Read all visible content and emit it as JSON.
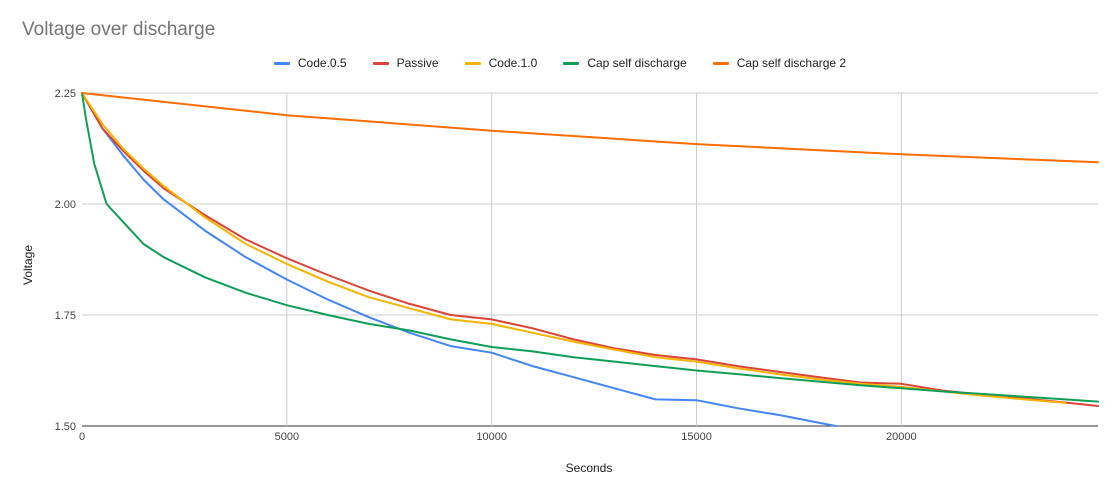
{
  "chart_data": {
    "type": "line",
    "title": "Voltage over discharge",
    "xlabel": "Seconds",
    "ylabel": "Voltage",
    "xlim": [
      0,
      24800
    ],
    "ylim": [
      1.5,
      2.25
    ],
    "x_ticks": [
      0,
      5000,
      10000,
      15000,
      20000
    ],
    "y_ticks": [
      "1.50",
      "1.75",
      "2.00",
      "2.25"
    ],
    "grid": true,
    "legend_position": "top",
    "series": [
      {
        "name": "Code.0.5",
        "color": "#4285f4",
        "points": [
          [
            0,
            2.25
          ],
          [
            500,
            2.17
          ],
          [
            1000,
            2.11
          ],
          [
            1500,
            2.055
          ],
          [
            2000,
            2.01
          ],
          [
            3000,
            1.94
          ],
          [
            4000,
            1.88
          ],
          [
            5000,
            1.83
          ],
          [
            6000,
            1.785
          ],
          [
            7000,
            1.745
          ],
          [
            8000,
            1.71
          ],
          [
            9000,
            1.68
          ],
          [
            10000,
            1.665
          ],
          [
            11000,
            1.635
          ],
          [
            12000,
            1.61
          ],
          [
            13000,
            1.585
          ],
          [
            14000,
            1.56
          ],
          [
            15000,
            1.558
          ],
          [
            16000,
            1.54
          ],
          [
            17000,
            1.525
          ],
          [
            18400,
            1.5
          ]
        ]
      },
      {
        "name": "Passive",
        "color": "#db4437",
        "points": [
          [
            0,
            2.25
          ],
          [
            500,
            2.17
          ],
          [
            1000,
            2.12
          ],
          [
            1500,
            2.075
          ],
          [
            2000,
            2.035
          ],
          [
            3000,
            1.975
          ],
          [
            4000,
            1.92
          ],
          [
            5000,
            1.878
          ],
          [
            6000,
            1.84
          ],
          [
            7000,
            1.805
          ],
          [
            8000,
            1.775
          ],
          [
            9000,
            1.75
          ],
          [
            10000,
            1.74
          ],
          [
            11000,
            1.72
          ],
          [
            12000,
            1.695
          ],
          [
            13000,
            1.675
          ],
          [
            14000,
            1.66
          ],
          [
            15000,
            1.65
          ],
          [
            16000,
            1.635
          ],
          [
            17000,
            1.622
          ],
          [
            18000,
            1.61
          ],
          [
            19000,
            1.598
          ],
          [
            20000,
            1.595
          ],
          [
            21000,
            1.58
          ],
          [
            22000,
            1.57
          ],
          [
            23000,
            1.562
          ],
          [
            24000,
            1.553
          ],
          [
            24800,
            1.545
          ]
        ]
      },
      {
        "name": "Code.1.0",
        "color": "#f4b400",
        "points": [
          [
            0,
            2.25
          ],
          [
            500,
            2.18
          ],
          [
            1000,
            2.125
          ],
          [
            1500,
            2.08
          ],
          [
            2000,
            2.04
          ],
          [
            3000,
            1.97
          ],
          [
            4000,
            1.91
          ],
          [
            5000,
            1.865
          ],
          [
            6000,
            1.825
          ],
          [
            7000,
            1.79
          ],
          [
            8000,
            1.765
          ],
          [
            9000,
            1.74
          ],
          [
            10000,
            1.73
          ],
          [
            11000,
            1.71
          ],
          [
            12000,
            1.69
          ],
          [
            13000,
            1.672
          ],
          [
            14000,
            1.655
          ],
          [
            15000,
            1.645
          ],
          [
            16000,
            1.63
          ],
          [
            17000,
            1.617
          ],
          [
            18000,
            1.605
          ],
          [
            19000,
            1.595
          ],
          [
            20000,
            1.588
          ],
          [
            21000,
            1.578
          ],
          [
            22000,
            1.568
          ],
          [
            23000,
            1.56
          ],
          [
            24000,
            1.552
          ]
        ]
      },
      {
        "name": "Cap self discharge",
        "color": "#0f9d58",
        "points": [
          [
            0,
            2.25
          ],
          [
            100,
            2.19
          ],
          [
            300,
            2.09
          ],
          [
            600,
            2.0
          ],
          [
            1000,
            1.96
          ],
          [
            1500,
            1.91
          ],
          [
            2000,
            1.88
          ],
          [
            3000,
            1.835
          ],
          [
            4000,
            1.8
          ],
          [
            5000,
            1.772
          ],
          [
            6000,
            1.75
          ],
          [
            7000,
            1.73
          ],
          [
            8000,
            1.715
          ],
          [
            9000,
            1.695
          ],
          [
            10000,
            1.678
          ],
          [
            11000,
            1.668
          ],
          [
            12000,
            1.655
          ],
          [
            13000,
            1.645
          ],
          [
            14000,
            1.635
          ],
          [
            15000,
            1.625
          ],
          [
            16000,
            1.617
          ],
          [
            17000,
            1.608
          ],
          [
            18000,
            1.6
          ],
          [
            19000,
            1.592
          ],
          [
            20000,
            1.585
          ],
          [
            21000,
            1.578
          ],
          [
            22000,
            1.572
          ],
          [
            23000,
            1.566
          ],
          [
            24000,
            1.56
          ],
          [
            24800,
            1.555
          ]
        ]
      },
      {
        "name": "Cap self discharge 2",
        "color": "#ff6d01",
        "points": [
          [
            0,
            2.25
          ],
          [
            5000,
            2.2
          ],
          [
            10000,
            2.165
          ],
          [
            15000,
            2.135
          ],
          [
            20000,
            2.112
          ],
          [
            24800,
            2.094
          ]
        ]
      }
    ]
  }
}
